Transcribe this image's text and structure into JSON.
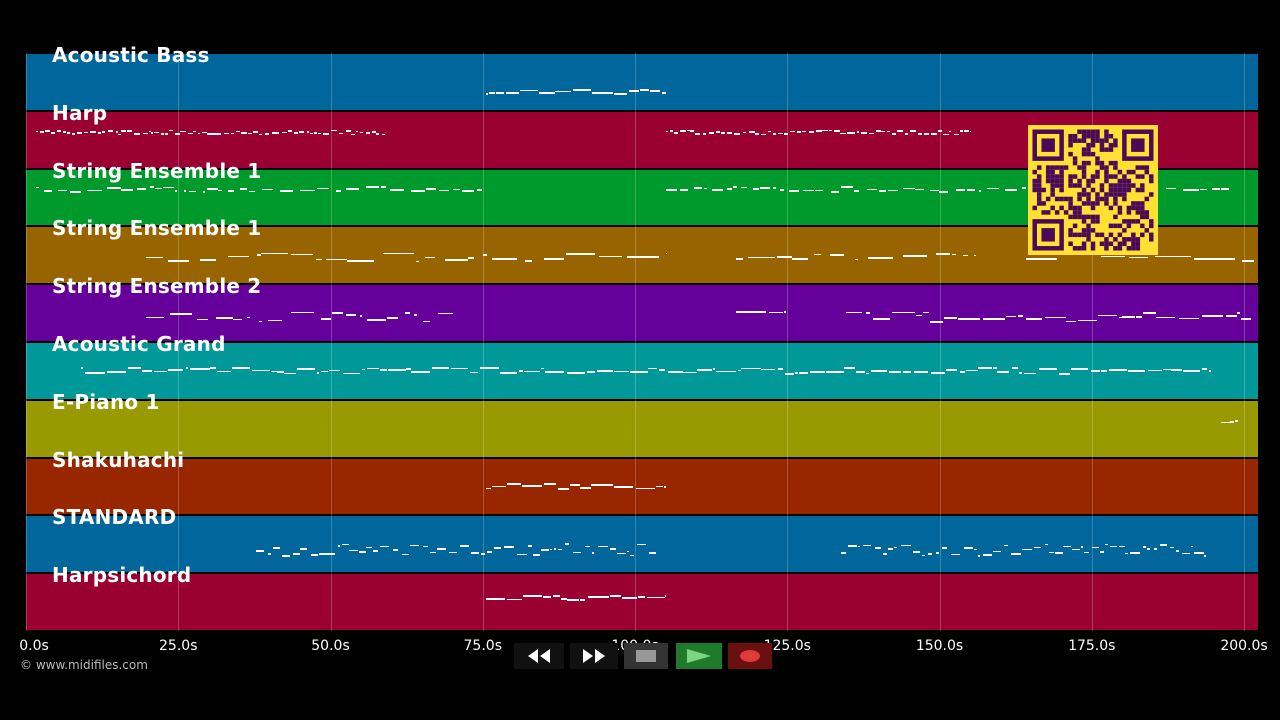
{
  "tracks": [
    {
      "label": "Acoustic Bass",
      "color": "#01669c"
    },
    {
      "label": "Harp",
      "color": "#9b0033"
    },
    {
      "label": "String Ensemble 1",
      "color": "#009a2c"
    },
    {
      "label": "String Ensemble 1",
      "color": "#986400"
    },
    {
      "label": "String Ensemble 2",
      "color": "#65009b"
    },
    {
      "label": "Acoustic Grand",
      "color": "#009898"
    },
    {
      "label": "E-Piano 1",
      "color": "#999a01"
    },
    {
      "label": "Shakuhachi",
      "color": "#982700"
    },
    {
      "label": "STANDARD",
      "color": "#01669c"
    },
    {
      "label": "Harpsichord",
      "color": "#9b0033"
    }
  ],
  "timeline": {
    "ticks": [
      "0.0s",
      "25.0s",
      "50.0s",
      "75.0s",
      "100.0s",
      "125.0s",
      "150.0s",
      "175.0s",
      "200.0s"
    ]
  },
  "credit": "© www.midifiles.com",
  "controls": {
    "rewind": "rewind-icon",
    "fast_forward": "fast-forward-icon",
    "stop": "stop-icon",
    "play": "play-icon",
    "record": "record-icon"
  },
  "colors": {
    "background": "#000000",
    "qr_fg": "#4b0a57",
    "qr_bg": "#ffe033",
    "play_bg": "#1f7a2a",
    "record_bg": "#6a1010"
  }
}
